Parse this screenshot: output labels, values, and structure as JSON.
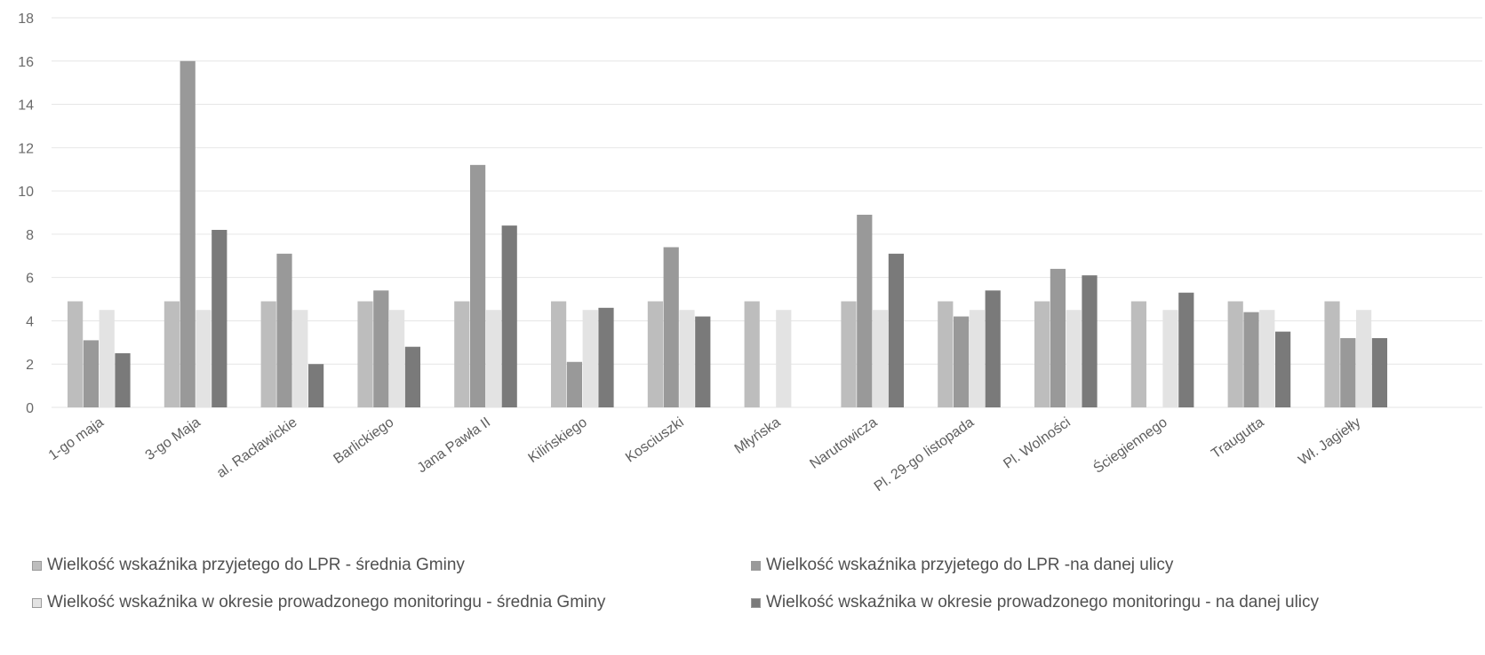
{
  "chart_data": {
    "type": "bar",
    "title": "",
    "xlabel": "",
    "ylabel": "",
    "ylim": [
      0,
      18
    ],
    "yticks": [
      0,
      2,
      4,
      6,
      8,
      10,
      12,
      14,
      16,
      18
    ],
    "grid": true,
    "legend_position": "bottom",
    "categories": [
      "1-go maja",
      "3-go Maja",
      "al. Racławickie",
      "Barlickiego",
      "Jana Pawła II",
      "Kilińskiego",
      "Kosciuszki",
      "Młyńska",
      "Narutowicza",
      "Pl. 29-go listopada",
      "Pl. Wolności",
      "Ściegiennego",
      "Traugutta",
      "Wł. Jagiełły"
    ],
    "series": [
      {
        "name": "Wielkość wskaźnika przyjetego do LPR - średnia Gminy",
        "color": "#bdbdbd",
        "values": [
          4.9,
          4.9,
          4.9,
          4.9,
          4.9,
          4.9,
          4.9,
          4.9,
          4.9,
          4.9,
          4.9,
          4.9,
          4.9,
          4.9
        ]
      },
      {
        "name": "Wielkość wskaźnika przyjetego do LPR -na danej ulicy",
        "color": "#999999",
        "values": [
          3.1,
          16,
          7.1,
          5.4,
          11.2,
          2.1,
          7.4,
          0,
          8.9,
          4.2,
          6.4,
          0,
          4.4,
          3.2
        ]
      },
      {
        "name": "Wielkość wskaźnika w okresie prowadzonego monitoringu - średnia Gminy",
        "color": "#e3e3e3",
        "values": [
          4.5,
          4.5,
          4.5,
          4.5,
          4.5,
          4.5,
          4.5,
          4.5,
          4.5,
          4.5,
          4.5,
          4.5,
          4.5,
          4.5
        ]
      },
      {
        "name": "Wielkość wskaźnika w okresie prowadzonego monitoringu - na danej ulicy",
        "color": "#7a7a7a",
        "values": [
          2.5,
          8.2,
          2.0,
          2.8,
          8.4,
          4.6,
          4.2,
          0,
          7.1,
          5.4,
          6.1,
          5.3,
          3.5,
          3.2
        ]
      }
    ]
  }
}
